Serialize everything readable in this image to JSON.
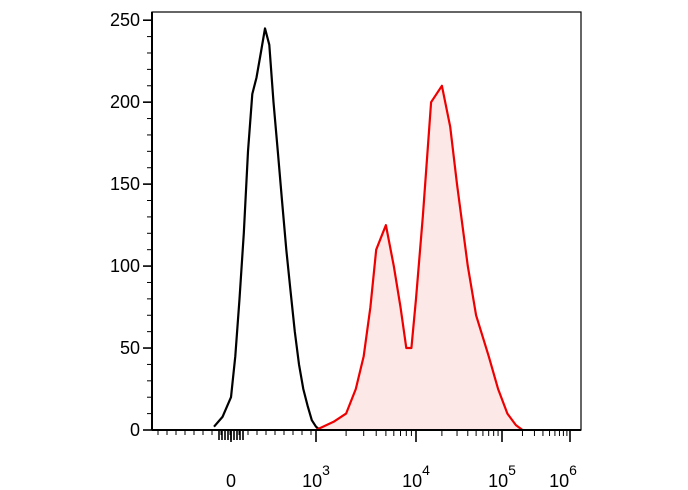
{
  "chart_data": {
    "type": "area",
    "title": "",
    "xlabel": "",
    "ylabel": "",
    "ylim": [
      0,
      255
    ],
    "y_ticks": [
      0,
      50,
      100,
      150,
      200,
      250
    ],
    "y_tick_labels": [
      "0",
      "50",
      "100",
      "150",
      "200",
      "250"
    ],
    "x_scale": "biexponential",
    "x_tick_labels": [
      {
        "base": "0",
        "exp": ""
      },
      {
        "base": "10",
        "exp": "3"
      },
      {
        "base": "10",
        "exp": "4"
      },
      {
        "base": "10",
        "exp": "5"
      },
      {
        "base": "10",
        "exp": "6"
      }
    ],
    "grid": false,
    "series": [
      {
        "color": "#000000",
        "fill": "none",
        "x": [
          -200,
          -100,
          0,
          50,
          100,
          150,
          200,
          250,
          300,
          350,
          400,
          450,
          500,
          550,
          600,
          650,
          700,
          750,
          800,
          850,
          900,
          950,
          1000,
          1100
        ],
        "y": [
          2,
          8,
          20,
          45,
          80,
          120,
          170,
          205,
          215,
          230,
          245,
          235,
          200,
          170,
          140,
          110,
          85,
          60,
          40,
          25,
          15,
          6,
          2,
          0
        ]
      },
      {
        "color": "#ee0000",
        "fill": "#fde8e8",
        "x": [
          1000,
          1500,
          2000,
          2500,
          3000,
          3500,
          4000,
          5000,
          6000,
          7000,
          8000,
          9000,
          10000,
          12000,
          15000,
          20000,
          25000,
          30000,
          40000,
          50000,
          70000,
          90000,
          120000,
          160000,
          200000
        ],
        "y": [
          0,
          5,
          10,
          25,
          45,
          75,
          110,
          125,
          100,
          75,
          50,
          50,
          80,
          130,
          200,
          210,
          185,
          150,
          100,
          70,
          45,
          25,
          10,
          3,
          0
        ]
      }
    ]
  }
}
